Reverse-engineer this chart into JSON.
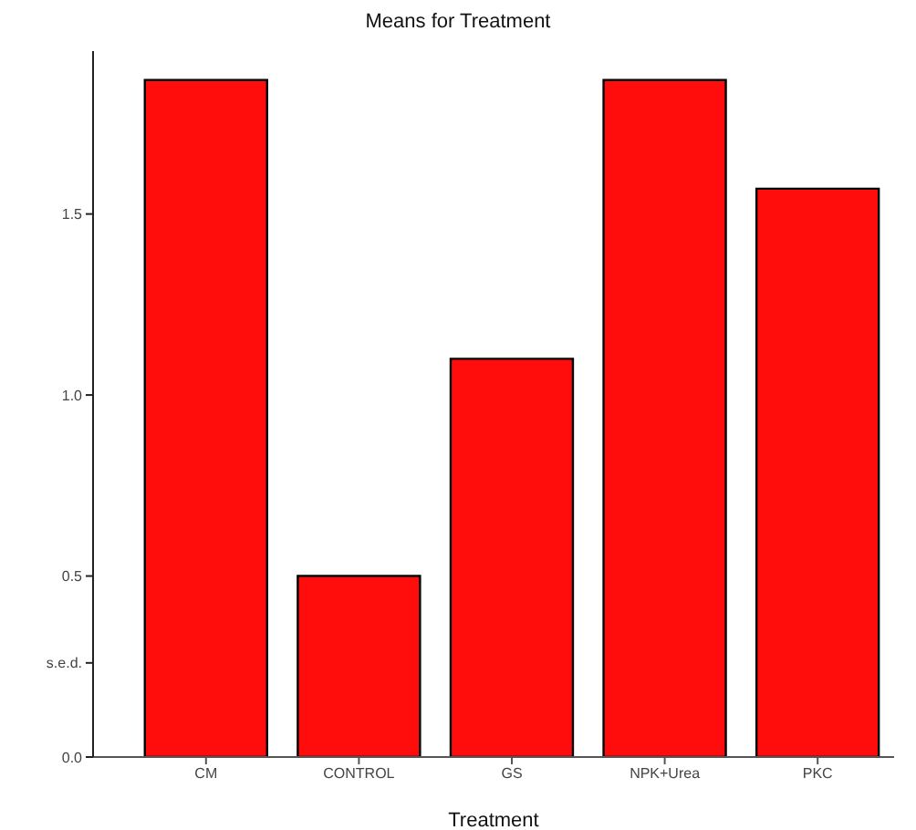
{
  "chart_data": {
    "type": "bar",
    "title": "Means for Treatment",
    "xlabel": "Treatment",
    "categories": [
      "CM",
      "CONTROL",
      "GS",
      "NPK+Urea",
      "PKC"
    ],
    "values": [
      1.87,
      0.5,
      1.1,
      1.87,
      1.57
    ],
    "color": "#ff0d0d",
    "ylim": [
      0,
      1.95
    ],
    "yticks": [
      {
        "value": 0,
        "label": "0.0"
      },
      {
        "value": 0.5,
        "label": "0.5"
      },
      {
        "value": 1,
        "label": "1.0"
      },
      {
        "value": 1.5,
        "label": "1.5"
      },
      {
        "value": 0.26,
        "label": "s.e.d."
      }
    ],
    "grid": false,
    "legend": false
  }
}
